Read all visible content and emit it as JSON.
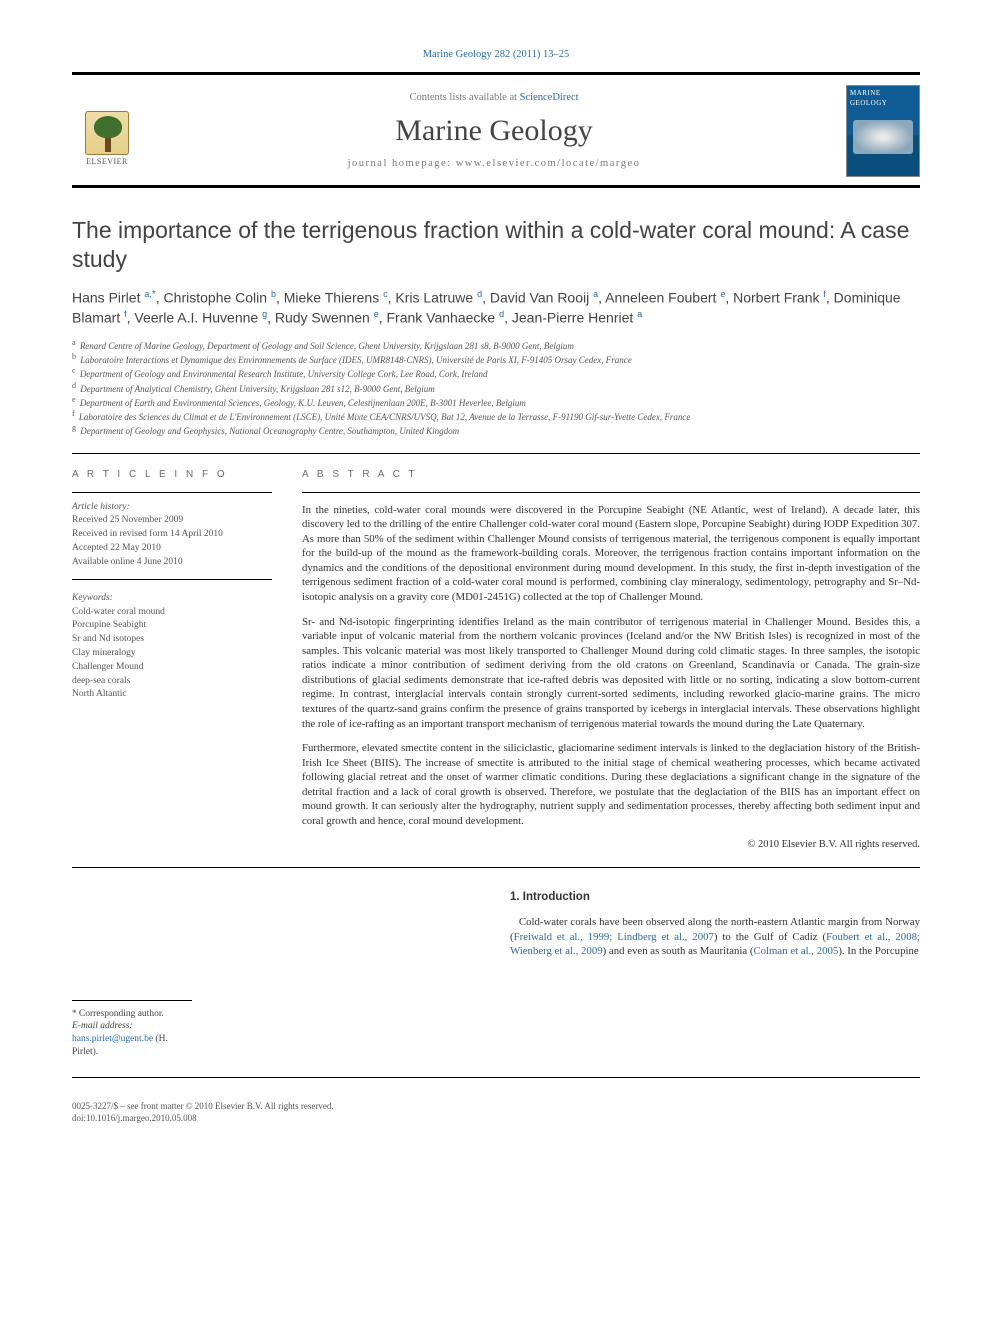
{
  "top_citation_prefix": "Marine Geology",
  "top_citation_rest": " 282 (2011) 13–25",
  "masthead": {
    "contents_prefix": "Contents lists available at ",
    "contents_link": "ScienceDirect",
    "journal_title": "Marine Geology",
    "homepage_line": "journal homepage: www.elsevier.com/locate/margeo",
    "publisher_name": "ELSEVIER",
    "cover_label": "MARINE GEOLOGY"
  },
  "article": {
    "title": "The importance of the terrigenous fraction within a cold-water coral mound: A case study",
    "authors_html": "Hans Pirlet <sup class='aff-sup'>a,</sup><span class='star'>*</span>, Christophe Colin <sup class='aff-sup'>b</sup>, Mieke Thierens <sup class='aff-sup'>c</sup>, Kris Latruwe <sup class='aff-sup'>d</sup>, David Van Rooij <sup class='aff-sup'>a</sup>, Anneleen Foubert <sup class='aff-sup'>e</sup>, Norbert Frank <sup class='aff-sup'>f</sup>, Dominique Blamart <sup class='aff-sup'>f</sup>, Veerle A.I. Huvenne <sup class='aff-sup'>g</sup>, Rudy Swennen <sup class='aff-sup'>e</sup>, Frank Vanhaecke <sup class='aff-sup'>d</sup>, Jean-Pierre Henriet <sup class='aff-sup'>a</sup>",
    "affiliations": [
      {
        "sup": "a",
        "text": "Renard Centre of Marine Geology, Department of Geology and Soil Science, Ghent University, Krijgslaan 281 s8, B-9000 Gent, Belgium"
      },
      {
        "sup": "b",
        "text": "Laboratoire Interactions et Dynamique des Environnements de Surface (IDES, UMR8148-CNRS), Université de Paris XI, F-91405 Orsay Cedex, France"
      },
      {
        "sup": "c",
        "text": "Department of Geology and Environmental Research Institute, University College Cork, Lee Road, Cork, Ireland"
      },
      {
        "sup": "d",
        "text": "Department of Analytical Chemistry, Ghent University, Krijgslaan 281 s12, B-9000 Gent, Belgium"
      },
      {
        "sup": "e",
        "text": "Department of Earth and Environmental Sciences, Geology, K.U. Leuven, Celestijnenlaan 200E, B-3001 Heverlee, Belgium"
      },
      {
        "sup": "f",
        "text": "Laboratoire des Sciences du Climat et de L'Environnement (LSCE), Unité Mixte CEA/CNRS/UVSQ, Bat 12, Avenue de la Terrasse, F-91190 Gif-sur-Yvette Cedex, France"
      },
      {
        "sup": "g",
        "text": "Department of Geology and Geophysics, National Oceanography Centre, Southampton, United Kingdom"
      }
    ]
  },
  "info": {
    "heading": "A R T I C L E   I N F O",
    "history_label": "Article history:",
    "received": "Received 25 November 2009",
    "revised": "Received in revised form 14 April 2010",
    "accepted": "Accepted 22 May 2010",
    "online": "Available online 4 June 2010",
    "keywords_label": "Keywords:",
    "keywords": [
      "Cold-water coral mound",
      "Porcupine Seabight",
      "Sr and Nd isotopes",
      "Clay mineralogy",
      "Challenger Mound",
      "deep-sea corals",
      "North Altantic"
    ]
  },
  "abstract": {
    "heading": "A B S T R A C T",
    "p1": "In the nineties, cold-water coral mounds were discovered in the Porcupine Seabight (NE Atlantic, west of Ireland). A decade later, this discovery led to the drilling of the entire Challenger cold-water coral mound (Eastern slope, Porcupine Seabight) during IODP Expedition 307. As more than 50% of the sediment within Challenger Mound consists of terrigenous material, the terrigenous component is equally important for the build-up of the mound as the framework-building corals. Moreover, the terrigenous fraction contains important information on the dynamics and the conditions of the depositional environment during mound development. In this study, the first in-depth investigation of the terrigenous sediment fraction of a cold-water coral mound is performed, combining clay mineralogy, sedimentology, petrography and Sr–Nd-isotopic analysis on a gravity core (MD01-2451G) collected at the top of Challenger Mound.",
    "p2": "Sr- and Nd-isotopic fingerprinting identifies Ireland as the main contributor of terrigenous material in Challenger Mound. Besides this, a variable input of volcanic material from the northern volcanic provinces (Iceland and/or the NW British Isles) is recognized in most of the samples. This volcanic material was most likely transported to Challenger Mound during cold climatic stages. In three samples, the isotopic ratios indicate a minor contribution of sediment deriving from the old cratons on Greenland, Scandinavia or Canada. The grain-size distributions of glacial sediments demonstrate that ice-rafted debris was deposited with little or no sorting, indicating a slow bottom-current regime. In contrast, interglacial intervals contain strongly current-sorted sediments, including reworked glacio-marine grains. The micro textures of the quartz-sand grains confirm the presence of grains transported by icebergs in interglacial intervals. These observations highlight the role of ice-rafting as an important transport mechanism of terrigenous material towards the mound during the Late Quaternary.",
    "p3": "Furthermore, elevated smectite content in the siliciclastic, glaciomarine sediment intervals is linked to the deglaciation history of the British-Irish Ice Sheet (BIIS). The increase of smectite is attributed to the initial stage of chemical weathering processes, which became activated following glacial retreat and the onset of warmer climatic conditions. During these deglaciations a significant change in the signature of the detrital fraction and a lack of coral growth is observed. Therefore, we postulate that the deglaciation of the BIIS has an important effect on mound growth. It can seriously alter the hydrography, nutrient supply and sedimentation processes, thereby affecting both sediment input and coral growth and hence, coral mound development.",
    "copyright": "© 2010 Elsevier B.V. All rights reserved."
  },
  "intro": {
    "heading": "1. Introduction",
    "para_parts": {
      "t1": "Cold-water corals have been observed along the north-eastern Atlantic margin from Norway (",
      "c1": "Freiwald et al., 1999; Lindberg et al., 2007",
      "t2": ") to the Gulf of Cadiz (",
      "c2": "Foubert et al., 2008; Wienberg et al., 2009",
      "t3": ") and even as south as Mauritania (",
      "c3": "Colman et al., 2005",
      "t4": "). In the Porcupine"
    }
  },
  "corresponding": {
    "label": "Corresponding author.",
    "email_label": "E-mail address:",
    "email": "hans.pirlet@ugent.be",
    "email_who": "(H. Pirlet)."
  },
  "footer": {
    "line1": "0025-3227/$ – see front matter © 2010 Elsevier B.V. All rights reserved.",
    "line2": "doi:10.1016/j.margeo.2010.05.008"
  },
  "colors": {
    "link": "#2a6aa8",
    "text": "#333333",
    "muted": "#6b6b6b"
  }
}
